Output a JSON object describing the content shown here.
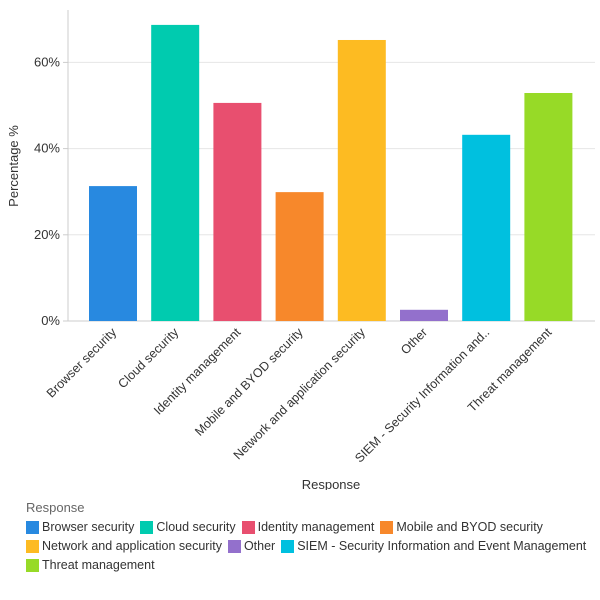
{
  "chart_data": {
    "type": "bar",
    "xlabel": "Response",
    "ylabel": "Percentage %",
    "ylim": [
      0,
      72
    ],
    "yticks": [
      0,
      20,
      40,
      60
    ],
    "ytick_labels": [
      "0%",
      "20%",
      "40%",
      "60%"
    ],
    "grid": true,
    "legend_title": "Response",
    "legend_position": "bottom",
    "categories": [
      "Browser security",
      "Cloud security",
      "Identity management",
      "Mobile and BYOD security",
      "Network and application security",
      "Other",
      "SIEM - Security Information and Event Management",
      "Threat management"
    ],
    "tick_labels": [
      "Browser security",
      "Cloud security",
      "Identity management",
      "Mobile and BYOD security",
      "Network and application security",
      "Other",
      "SIEM - Security Information and..",
      "Threat management"
    ],
    "values": [
      31.3,
      68.7,
      50.6,
      29.9,
      65.2,
      2.6,
      43.2,
      52.9
    ],
    "colors": [
      "#2889e0",
      "#00cbaf",
      "#e84f6f",
      "#f7882b",
      "#fdbb22",
      "#9370cc",
      "#00c0df",
      "#97da27"
    ]
  }
}
